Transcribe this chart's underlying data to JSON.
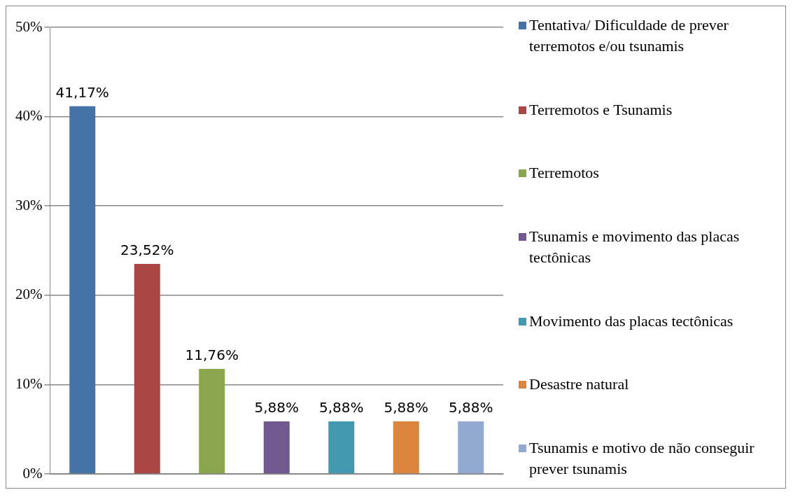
{
  "chart_data": {
    "type": "bar",
    "categories": [
      null,
      null,
      null,
      null,
      null,
      null,
      null
    ],
    "series": [
      {
        "name": "Tentativa/ Dificuldade de prever terremotos e/ou tsunamis",
        "color": "#4572a7",
        "values": [
          41.17,
          null,
          null,
          null,
          null,
          null,
          null
        ],
        "value_labels": [
          "41,17%",
          null,
          null,
          null,
          null,
          null,
          null
        ]
      },
      {
        "name": "Terremotos e Tsunamis",
        "color": "#aa4643",
        "values": [
          null,
          23.52,
          null,
          null,
          null,
          null,
          null
        ],
        "value_labels": [
          null,
          "23,52%",
          null,
          null,
          null,
          null,
          null
        ]
      },
      {
        "name": "Terremotos",
        "color": "#89a54e",
        "values": [
          null,
          null,
          11.76,
          null,
          null,
          null,
          null
        ],
        "value_labels": [
          null,
          null,
          "11,76%",
          null,
          null,
          null,
          null
        ]
      },
      {
        "name": "Tsunamis e movimento das placas tectônicas",
        "color": "#71588f",
        "values": [
          null,
          null,
          null,
          5.88,
          null,
          null,
          null
        ],
        "value_labels": [
          null,
          null,
          null,
          "5,88%",
          null,
          null,
          null
        ]
      },
      {
        "name": "Movimento das placas tectônicas",
        "color": "#4198af",
        "values": [
          null,
          null,
          null,
          null,
          5.88,
          null,
          null
        ],
        "value_labels": [
          null,
          null,
          null,
          null,
          "5,88%",
          null,
          null
        ]
      },
      {
        "name": "Desastre natural",
        "color": "#db843d",
        "values": [
          null,
          null,
          null,
          null,
          null,
          5.88,
          null
        ],
        "value_labels": [
          null,
          null,
          null,
          null,
          null,
          "5,88%",
          null
        ]
      },
      {
        "name": "Tsunamis e motivo de não conseguir prever tsunamis",
        "color": "#93a9cf",
        "values": [
          null,
          null,
          null,
          null,
          null,
          null,
          5.88
        ],
        "value_labels": [
          null,
          null,
          null,
          null,
          null,
          null,
          "5,88%"
        ]
      }
    ],
    "ylim": [
      0,
      50
    ],
    "yticks": [
      {
        "value": 0,
        "label": "0%"
      },
      {
        "value": 10,
        "label": "10%"
      },
      {
        "value": 20,
        "label": "20%"
      },
      {
        "value": 30,
        "label": "30%"
      },
      {
        "value": 40,
        "label": "40%"
      },
      {
        "value": 50,
        "label": "50%"
      }
    ],
    "grid": "y",
    "legend": "right",
    "tick_labels": "y"
  }
}
